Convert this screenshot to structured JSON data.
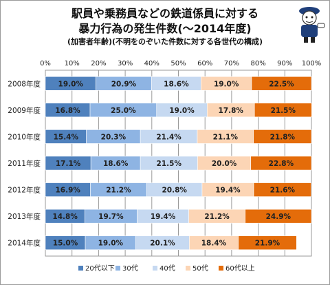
{
  "title_line1": "駅員や乗務員などの鉄道係員に対する",
  "title_line2": "暴力行為の発生件数(〜2014年度)",
  "subtitle": "(加害者年齢)(不明をのぞいた件数に対する各世代の構成)",
  "colors": [
    "#4f81bd",
    "#8eb4e3",
    "#c6d9f1",
    "#fcd5b5",
    "#e46c0a"
  ],
  "chart_data": {
    "type": "bar",
    "orientation": "horizontal",
    "stacked": "percent",
    "categories": [
      "2008年度",
      "2009年度",
      "2010年度",
      "2011年度",
      "2012年度",
      "2013年度",
      "2014年度"
    ],
    "series": [
      {
        "name": "20代以下",
        "values": [
          19.0,
          16.8,
          15.4,
          17.1,
          16.9,
          14.8,
          15.0
        ]
      },
      {
        "name": "30代",
        "values": [
          20.9,
          25.0,
          20.3,
          18.6,
          21.2,
          19.7,
          19.0
        ]
      },
      {
        "name": "40代",
        "values": [
          18.6,
          19.0,
          21.4,
          21.5,
          20.8,
          19.4,
          20.1
        ]
      },
      {
        "name": "50代",
        "values": [
          19.0,
          17.8,
          21.1,
          20.0,
          19.4,
          21.2,
          18.4
        ]
      },
      {
        "name": "60代以上",
        "values": [
          22.5,
          21.5,
          21.8,
          22.8,
          21.6,
          24.9,
          21.9
        ]
      }
    ],
    "xlim": [
      0,
      100
    ],
    "xticks": [
      "0%",
      "10%",
      "20%",
      "30%",
      "40%",
      "50%",
      "60%",
      "70%",
      "80%",
      "90%",
      "100%"
    ],
    "grid": true,
    "legend": "bottom"
  }
}
